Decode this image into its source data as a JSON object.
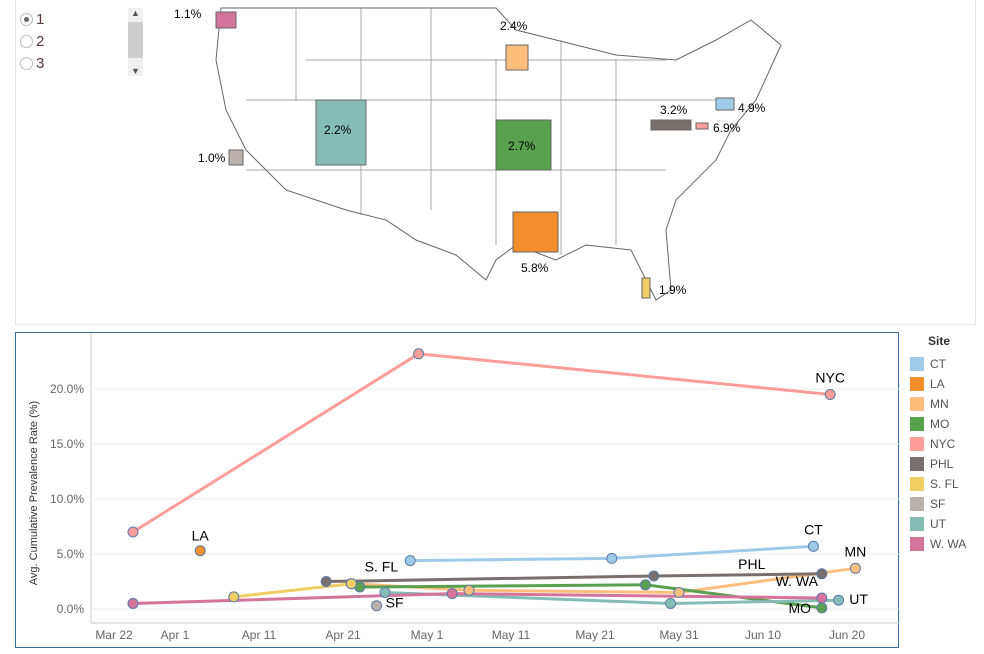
{
  "filter": {
    "options": [
      {
        "label": "1",
        "selected": true
      },
      {
        "label": "2",
        "selected": false
      },
      {
        "label": "3",
        "selected": false
      }
    ]
  },
  "map": {
    "labels": [
      {
        "state": "WA",
        "text": "1.1%",
        "color": "#d4749b"
      },
      {
        "state": "MN",
        "text": "2.4%",
        "color": "#ffbe7d"
      },
      {
        "state": "UT",
        "text": "2.2%",
        "color": "#86bcb6"
      },
      {
        "state": "MO",
        "text": "2.7%",
        "color": "#59a14f"
      },
      {
        "state": "PA",
        "text": "3.2%",
        "color": "#79706e"
      },
      {
        "state": "CT",
        "text": "4.9%",
        "color": "#a0cbe8"
      },
      {
        "state": "NY",
        "text": "6.9%",
        "color": "#ff9d9a"
      },
      {
        "state": "CA",
        "text": "1.0%",
        "color": "#bab0ac"
      },
      {
        "state": "LA",
        "text": "5.8%",
        "color": "#f28e2b"
      },
      {
        "state": "FL",
        "text": "1.9%",
        "color": "#f1ce63"
      }
    ]
  },
  "chart_data": {
    "type": "line",
    "ylabel": "Avg. Cumulative Prevalence Rate (%)",
    "xlabel": "",
    "x_ticks": [
      "Mar 22",
      "Apr 1",
      "Apr 11",
      "Apr 21",
      "May 1",
      "May 11",
      "May 21",
      "May 31",
      "Jun 10",
      "Jun 20"
    ],
    "y_ticks": [
      "0.0%",
      "5.0%",
      "10.0%",
      "15.0%",
      "20.0%"
    ],
    "ylim": [
      0,
      24
    ],
    "x_unit": "days since Mar 22",
    "legend_title": "Site",
    "series": [
      {
        "name": "CT",
        "color": "#a0cbe8",
        "points": [
          [
            38,
            4.4
          ],
          [
            62,
            4.6
          ],
          [
            86,
            5.7
          ]
        ]
      },
      {
        "name": "LA",
        "color": "#f28e2b",
        "points": [
          [
            13,
            5.3
          ]
        ]
      },
      {
        "name": "MN",
        "color": "#ffbe7d",
        "points": [
          [
            31,
            2.3
          ],
          [
            45,
            1.7
          ],
          [
            70,
            1.5
          ],
          [
            91,
            3.7
          ]
        ]
      },
      {
        "name": "MO",
        "color": "#59a14f",
        "points": [
          [
            32,
            2.0
          ],
          [
            66,
            2.2
          ],
          [
            87,
            0.1
          ]
        ]
      },
      {
        "name": "NYC",
        "color": "#ff9d9a",
        "points": [
          [
            5,
            7.0
          ],
          [
            39,
            23.2
          ],
          [
            88,
            19.5
          ]
        ]
      },
      {
        "name": "PHL",
        "color": "#79706e",
        "points": [
          [
            28,
            2.5
          ],
          [
            67,
            3.0
          ],
          [
            87,
            3.2
          ]
        ]
      },
      {
        "name": "S. FL",
        "color": "#f1ce63",
        "points": [
          [
            17,
            1.1
          ],
          [
            31,
            2.3
          ]
        ]
      },
      {
        "name": "SF",
        "color": "#bab0ac",
        "points": [
          [
            34,
            0.3
          ]
        ]
      },
      {
        "name": "UT",
        "color": "#86bcb6",
        "points": [
          [
            35,
            1.5
          ],
          [
            69,
            0.5
          ],
          [
            89,
            0.8
          ]
        ]
      },
      {
        "name": "W. WA",
        "color": "#d4749b",
        "points": [
          [
            5,
            0.5
          ],
          [
            43,
            1.4
          ],
          [
            87,
            1.0
          ]
        ]
      }
    ]
  }
}
